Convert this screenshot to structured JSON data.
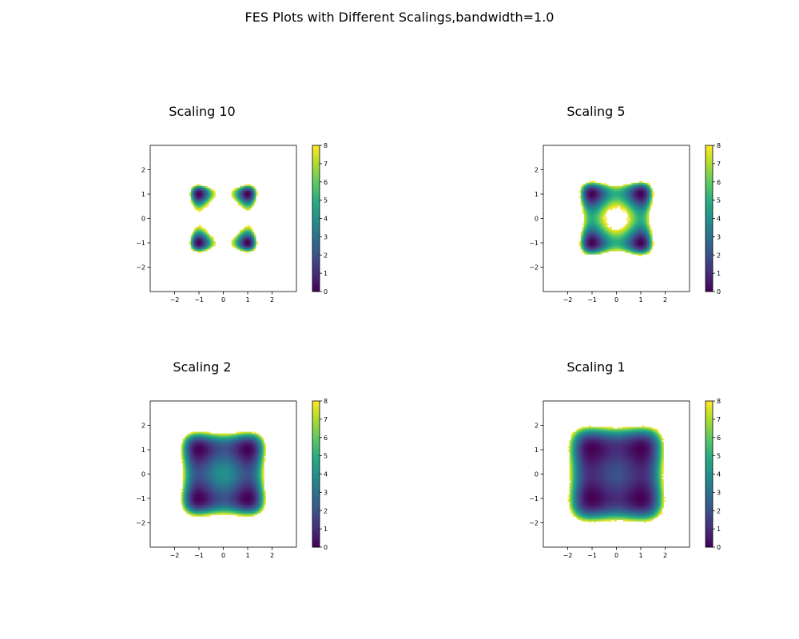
{
  "figure": {
    "title": "FES Plots with Different Scalings,bandwidth=1.0"
  },
  "colormap": {
    "name": "viridis",
    "stops": [
      "#440154",
      "#472c7a",
      "#3b528b",
      "#2c728e",
      "#21918c",
      "#28ae80",
      "#5ec962",
      "#addc30",
      "#fde725"
    ]
  },
  "chart_data": [
    {
      "type": "heatmap",
      "title": "Scaling 10",
      "scaling": 10,
      "xlim": [
        -3,
        3
      ],
      "ylim": [
        -3,
        3
      ],
      "xticks": [
        -2,
        -1,
        0,
        1,
        2
      ],
      "yticks": [
        -2,
        -1,
        0,
        1,
        2
      ],
      "colorbar": {
        "min": 0,
        "max": 8,
        "ticks": [
          0,
          1,
          2,
          3,
          4,
          5,
          6,
          7,
          8
        ]
      },
      "minima": [
        [
          -1,
          1
        ],
        [
          1,
          1
        ],
        [
          -1,
          -1
        ],
        [
          1,
          -1
        ]
      ],
      "fes_cutoff": 8,
      "grid": false
    },
    {
      "type": "heatmap",
      "title": "Scaling 5",
      "scaling": 5,
      "xlim": [
        -3,
        3
      ],
      "ylim": [
        -3,
        3
      ],
      "xticks": [
        -2,
        -1,
        0,
        1,
        2
      ],
      "yticks": [
        -2,
        -1,
        0,
        1,
        2
      ],
      "colorbar": {
        "min": 0,
        "max": 8,
        "ticks": [
          0,
          1,
          2,
          3,
          4,
          5,
          6,
          7,
          8
        ]
      },
      "minima": [
        [
          -1,
          1
        ],
        [
          1,
          1
        ],
        [
          -1,
          -1
        ],
        [
          1,
          -1
        ]
      ],
      "fes_cutoff": 8,
      "grid": false
    },
    {
      "type": "heatmap",
      "title": "Scaling 2",
      "scaling": 2,
      "xlim": [
        -3,
        3
      ],
      "ylim": [
        -3,
        3
      ],
      "xticks": [
        -2,
        -1,
        0,
        1,
        2
      ],
      "yticks": [
        -2,
        -1,
        0,
        1,
        2
      ],
      "colorbar": {
        "min": 0,
        "max": 8,
        "ticks": [
          0,
          1,
          2,
          3,
          4,
          5,
          6,
          7,
          8
        ]
      },
      "minima": [
        [
          -1,
          1
        ],
        [
          1,
          1
        ],
        [
          -1,
          -1
        ],
        [
          1,
          -1
        ]
      ],
      "fes_cutoff": 8,
      "grid": false
    },
    {
      "type": "heatmap",
      "title": "Scaling 1",
      "scaling": 1,
      "xlim": [
        -3,
        3
      ],
      "ylim": [
        -3,
        3
      ],
      "xticks": [
        -2,
        -1,
        0,
        1,
        2
      ],
      "yticks": [
        -2,
        -1,
        0,
        1,
        2
      ],
      "colorbar": {
        "min": 0,
        "max": 8,
        "ticks": [
          0,
          1,
          2,
          3,
          4,
          5,
          6,
          7,
          8
        ]
      },
      "minima": [
        [
          -1,
          1
        ],
        [
          1,
          1
        ],
        [
          -1,
          -1
        ],
        [
          1,
          -1
        ]
      ],
      "fes_cutoff": 8,
      "grid": false
    }
  ]
}
